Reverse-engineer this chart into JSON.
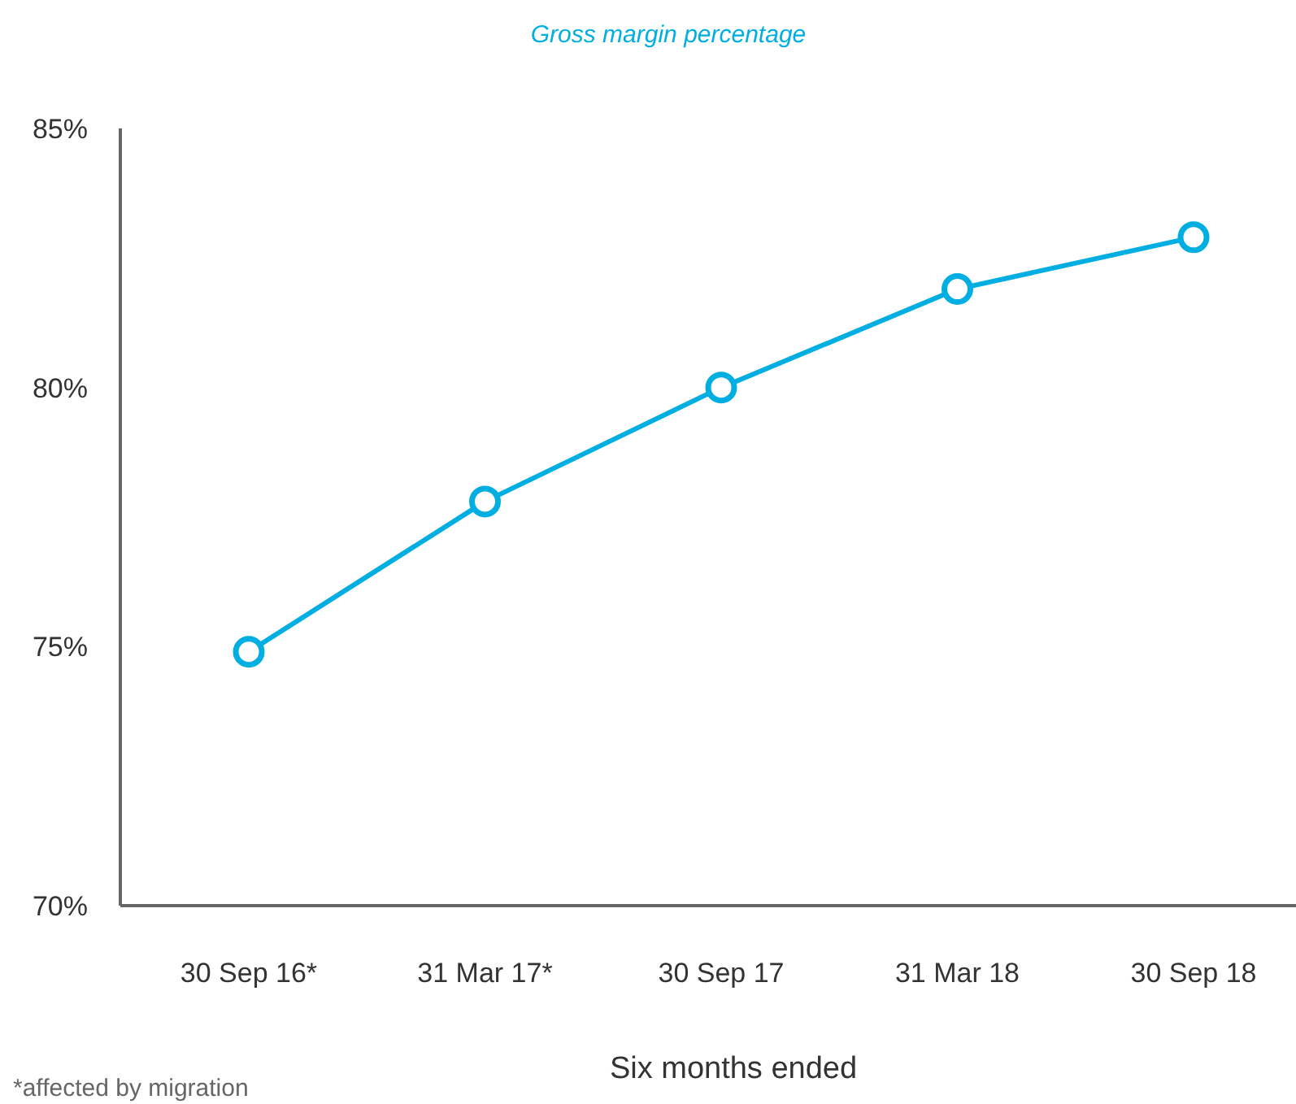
{
  "chart_data": {
    "type": "line",
    "title": "Gross margin percentage",
    "xlabel": "Six months ended",
    "annotations": [
      "*affected by migration"
    ],
    "categories": [
      "30 Sep 16*",
      "31 Mar 17*",
      "30 Sep 17",
      "31 Mar 18",
      "30 Sep 18"
    ],
    "series": [
      {
        "color": "#00aee2",
        "values": [
          74.9,
          77.8,
          80.0,
          81.9,
          82.9
        ]
      }
    ],
    "ylim": [
      70,
      85
    ],
    "yticks": [
      {
        "value": 70,
        "label": "70%"
      },
      {
        "value": 75,
        "label": "75%"
      },
      {
        "value": 80,
        "label": "80%"
      },
      {
        "value": 85,
        "label": "85%"
      }
    ],
    "grid": false,
    "marker": "circle",
    "line_style": "solid"
  }
}
